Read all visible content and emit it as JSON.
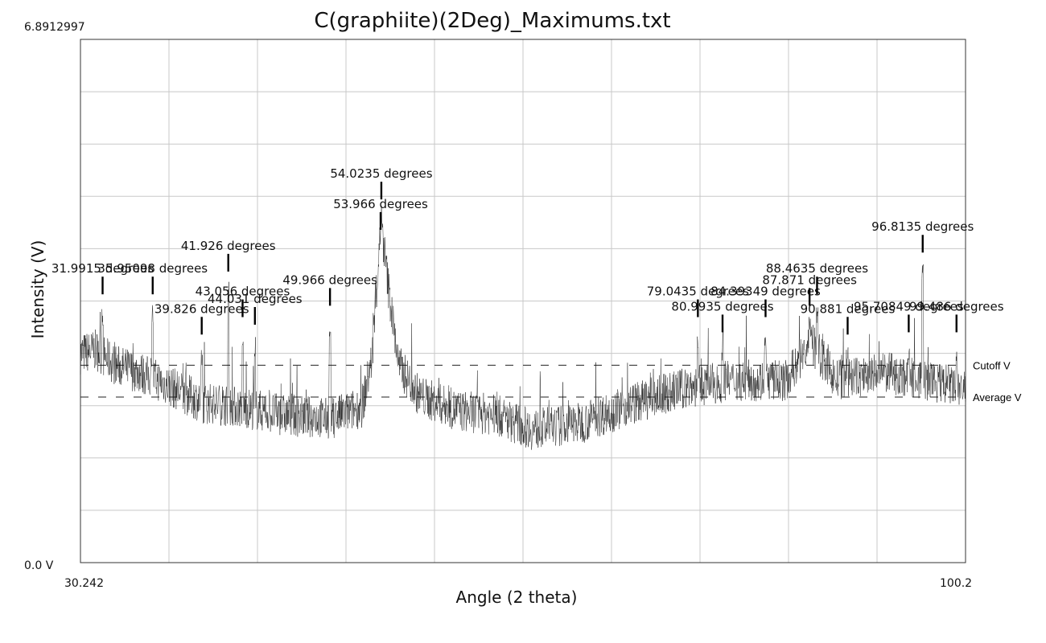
{
  "chart_data": {
    "type": "line",
    "title": "C(graphiite)(2Deg)_Maximums.txt",
    "xlabel": "Angle (2 theta)",
    "ylabel": "Intensity (V)",
    "xlim": [
      30.242,
      100.2
    ],
    "ylim": [
      0.0,
      6.8912997
    ],
    "x_tick_labels": {
      "min": "30.242",
      "max": "100.2"
    },
    "y_tick_labels": {
      "min": "0.0 V",
      "max": "6.8912997"
    },
    "grid": true,
    "reference_lines": [
      {
        "name": "Cutoff V",
        "value": 2.6
      },
      {
        "name": "Average V",
        "value": 2.18
      }
    ],
    "baseline_profile": [
      [
        30.242,
        2.75
      ],
      [
        31.5,
        2.8
      ],
      [
        33.0,
        2.6
      ],
      [
        35.0,
        2.5
      ],
      [
        37.0,
        2.35
      ],
      [
        40.0,
        2.1
      ],
      [
        43.0,
        2.05
      ],
      [
        46.0,
        1.95
      ],
      [
        50.0,
        1.9
      ],
      [
        52.5,
        2.05
      ],
      [
        53.3,
        2.7
      ],
      [
        54.0,
        4.5
      ],
      [
        54.6,
        3.6
      ],
      [
        55.4,
        2.6
      ],
      [
        57.0,
        2.2
      ],
      [
        60.0,
        2.0
      ],
      [
        63.0,
        1.95
      ],
      [
        66.0,
        1.75
      ],
      [
        70.0,
        1.85
      ],
      [
        74.0,
        2.1
      ],
      [
        78.0,
        2.3
      ],
      [
        82.0,
        2.4
      ],
      [
        86.0,
        2.4
      ],
      [
        88.0,
        2.9
      ],
      [
        90.0,
        2.4
      ],
      [
        94.0,
        2.5
      ],
      [
        97.0,
        2.4
      ],
      [
        100.2,
        2.3
      ]
    ],
    "peaks": [
      {
        "label": "31.9915 degrees",
        "x": 31.9915,
        "y": 3.65
      },
      {
        "label": "35.95098 degrees",
        "x": 35.95098,
        "y": 3.65
      },
      {
        "label": "39.826 degrees",
        "x": 39.826,
        "y": 3.12
      },
      {
        "label": "41.926 degrees",
        "x": 41.926,
        "y": 3.95
      },
      {
        "label": "43.056 degrees",
        "x": 43.056,
        "y": 3.35
      },
      {
        "label": "44.031 degrees",
        "x": 44.031,
        "y": 3.25
      },
      {
        "label": "49.966 degrees",
        "x": 49.966,
        "y": 3.5
      },
      {
        "label": "53.966 degrees",
        "x": 53.966,
        "y": 4.5
      },
      {
        "label": "54.0235 degrees",
        "x": 54.0235,
        "y": 4.9
      },
      {
        "label": "79.0435 degrees",
        "x": 79.0435,
        "y": 3.35
      },
      {
        "label": "80.9935 degrees",
        "x": 80.9935,
        "y": 3.15
      },
      {
        "label": "84.39349 degrees",
        "x": 84.39349,
        "y": 3.35
      },
      {
        "label": "87.871 degrees",
        "x": 87.871,
        "y": 3.5
      },
      {
        "label": "88.4635 degrees",
        "x": 88.4635,
        "y": 3.65
      },
      {
        "label": "90.881 degrees",
        "x": 90.881,
        "y": 3.12
      },
      {
        "label": "95.70849 degrees",
        "x": 95.70849,
        "y": 3.15
      },
      {
        "label": "96.8135 degrees",
        "x": 96.8135,
        "y": 4.2
      },
      {
        "label": "99.486 degrees",
        "x": 99.486,
        "y": 3.15
      }
    ]
  }
}
